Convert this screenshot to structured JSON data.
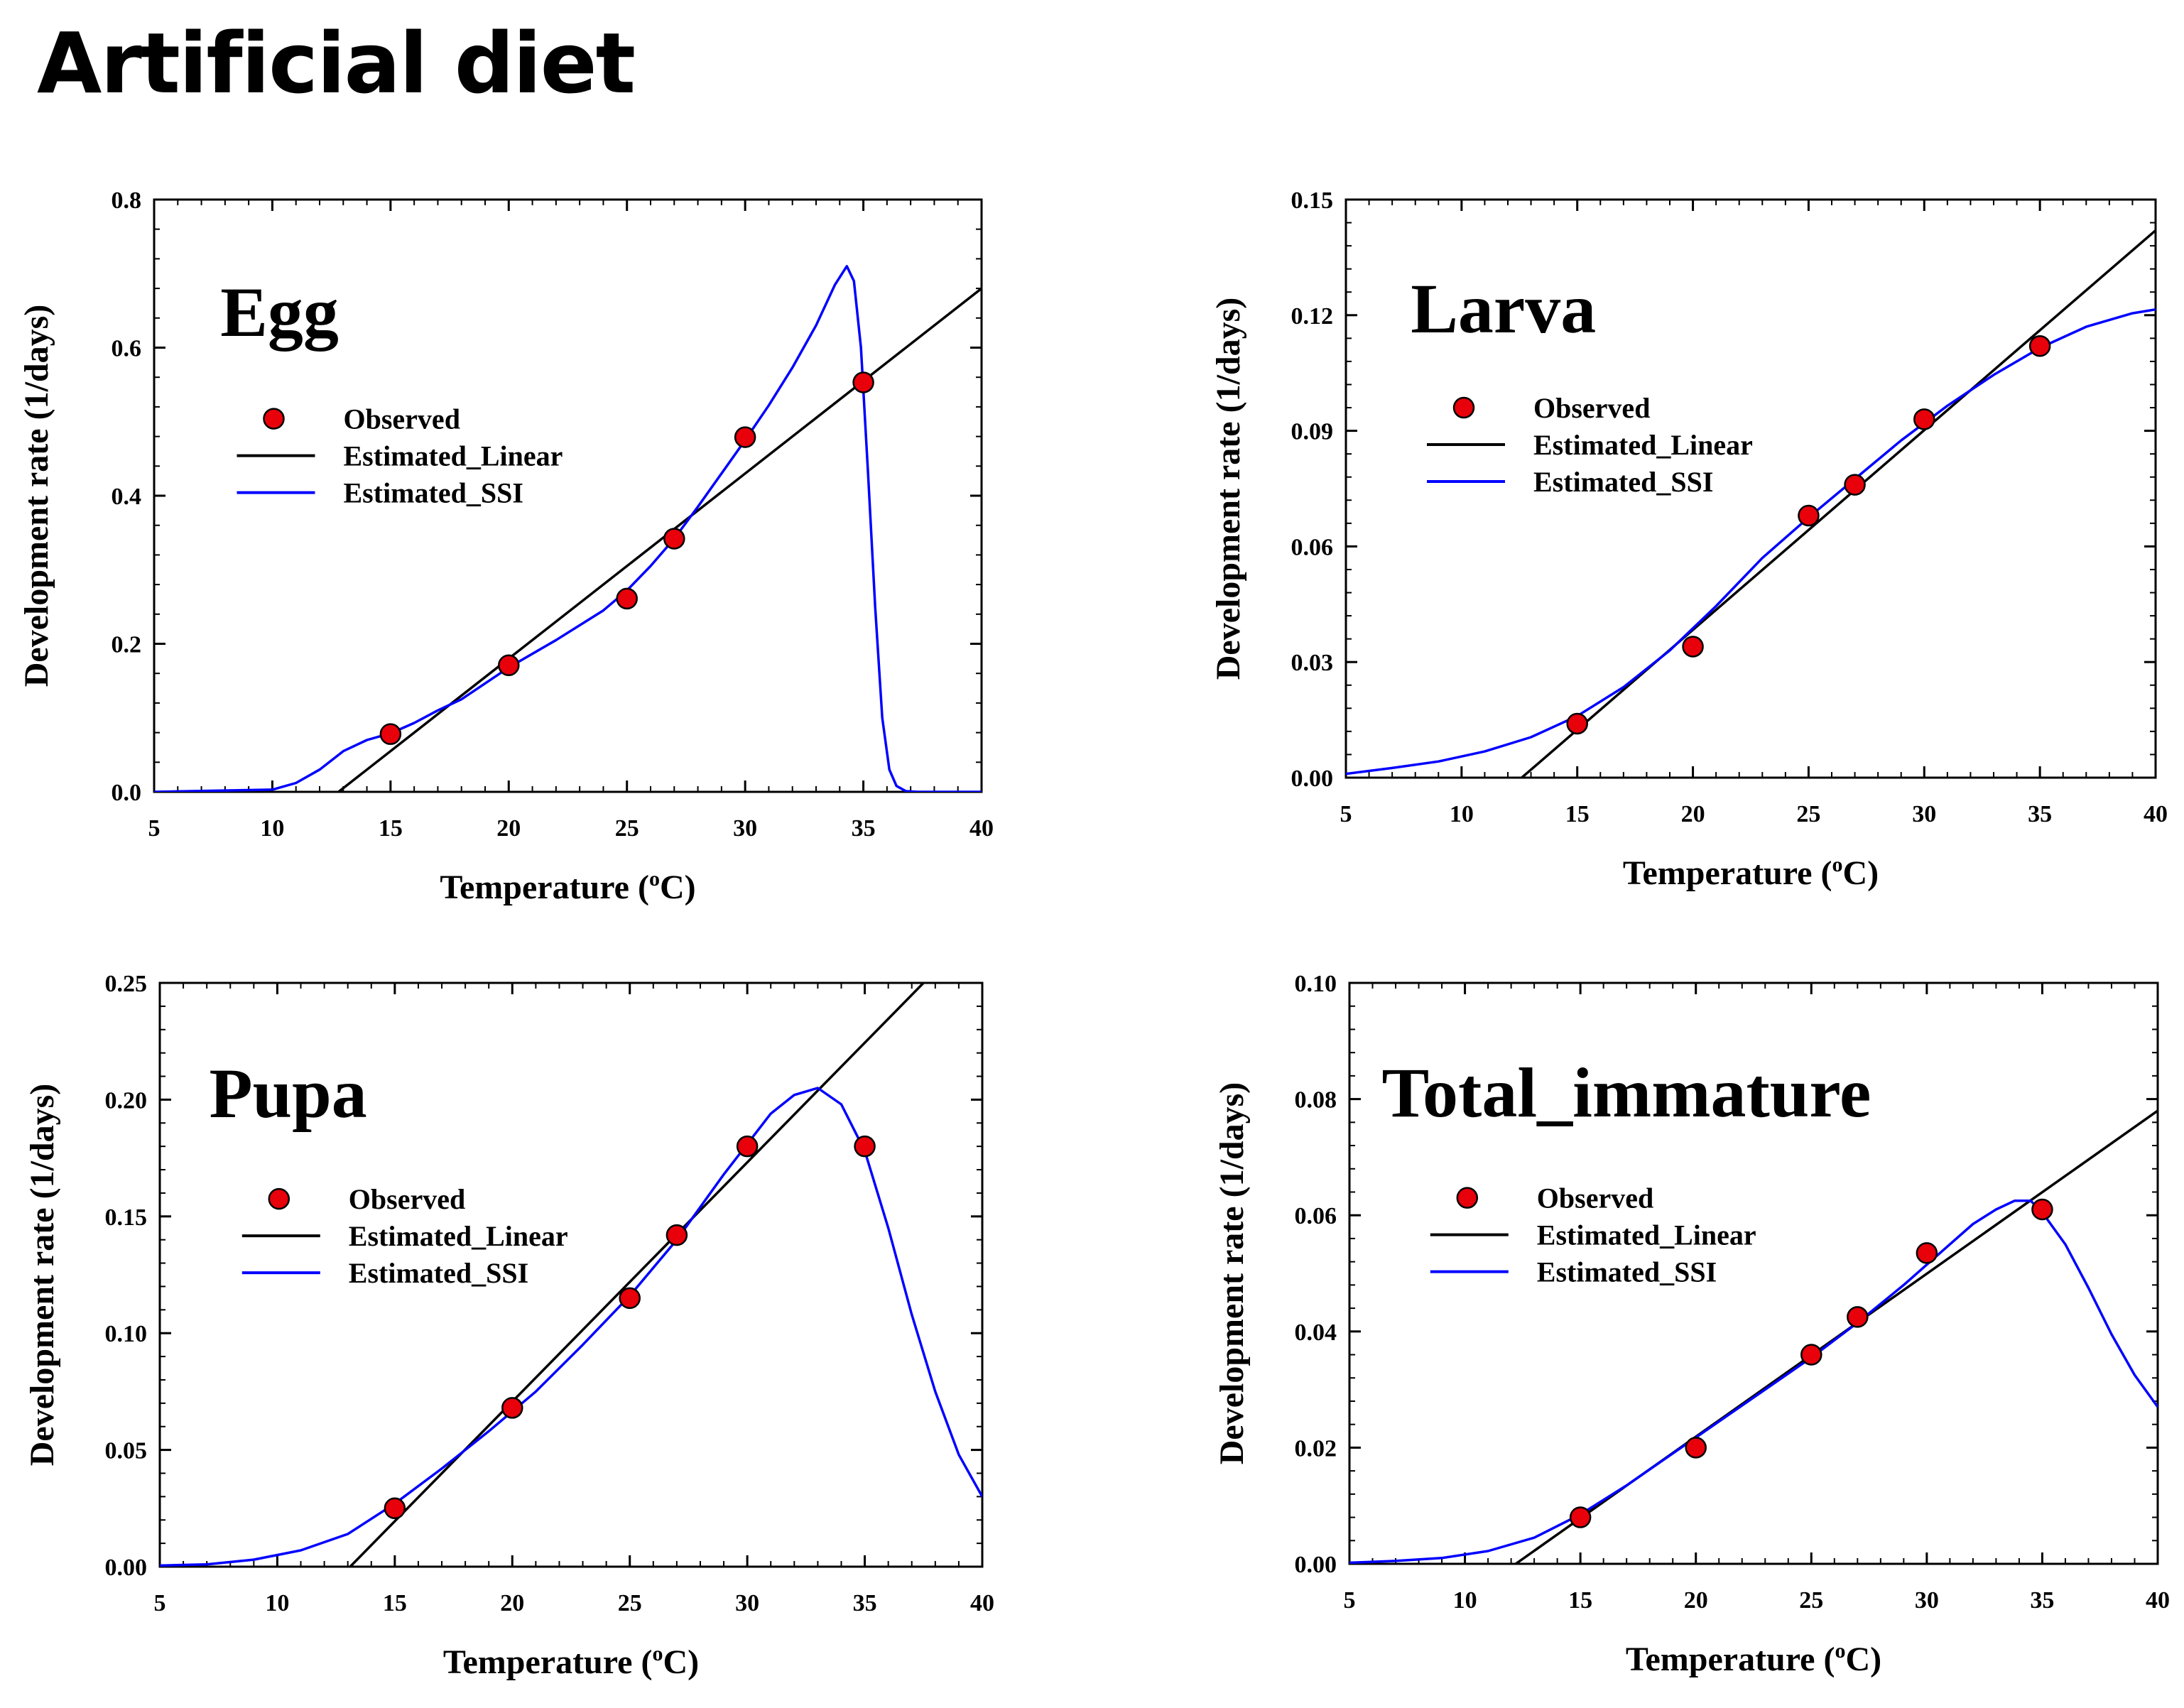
{
  "page": {
    "title": "Artificial diet"
  },
  "legend": {
    "observed": "Observed",
    "linear": "Estimated_Linear",
    "ssi": "Estimated_SSI"
  },
  "colors": {
    "observed_fill": "#e8000b",
    "linear": "#000000",
    "ssi": "#0000ff",
    "axis": "#000000"
  },
  "chart_data": [
    {
      "type": "scatter",
      "title": "Egg",
      "xlabel": "Temperature (oC)",
      "ylabel": "Development rate (1/days)",
      "xlim": [
        5,
        40
      ],
      "ylim": [
        0,
        0.8
      ],
      "xticks": [
        5,
        10,
        15,
        20,
        25,
        30,
        35,
        40
      ],
      "yticks": [
        0,
        0.2,
        0.4,
        0.6,
        0.8
      ],
      "ytick_labels": [
        "0.0",
        "0.2",
        "0.4",
        "0.6",
        "0.8"
      ],
      "observed": {
        "x": [
          15,
          20,
          25,
          27,
          30,
          35
        ],
        "y": [
          0.078,
          0.171,
          0.261,
          0.342,
          0.479,
          0.553
        ]
      },
      "linear": {
        "x": [
          12.8,
          40
        ],
        "y": [
          0,
          0.68
        ]
      },
      "ssi": {
        "x": [
          5,
          10,
          11,
          12,
          13,
          14,
          15,
          16,
          17,
          18,
          20,
          22,
          24,
          25,
          26,
          27,
          28,
          29,
          30,
          31,
          32,
          33,
          33.8,
          34.3,
          34.6,
          34.9,
          35.2,
          35.5,
          35.8,
          36.1,
          36.4,
          36.8,
          37.3,
          40
        ],
        "y": [
          0,
          0.003,
          0.012,
          0.03,
          0.055,
          0.07,
          0.079,
          0.093,
          0.11,
          0.125,
          0.168,
          0.205,
          0.245,
          0.272,
          0.305,
          0.342,
          0.385,
          0.43,
          0.475,
          0.522,
          0.573,
          0.63,
          0.685,
          0.71,
          0.69,
          0.6,
          0.43,
          0.25,
          0.1,
          0.03,
          0.008,
          0.001,
          0,
          0
        ]
      }
    },
    {
      "type": "scatter",
      "title": "Larva",
      "xlabel": "Temperature (oC)",
      "ylabel": "Development rate (1/days)",
      "xlim": [
        5,
        40
      ],
      "ylim": [
        0,
        0.15
      ],
      "xticks": [
        5,
        10,
        15,
        20,
        25,
        30,
        35,
        40
      ],
      "yticks": [
        0,
        0.03,
        0.06,
        0.09,
        0.12,
        0.15
      ],
      "ytick_labels": [
        "0.00",
        "0.03",
        "0.06",
        "0.09",
        "0.12",
        "0.15"
      ],
      "observed": {
        "x": [
          15,
          20,
          25,
          27,
          30,
          35
        ],
        "y": [
          0.014,
          0.034,
          0.068,
          0.076,
          0.093,
          0.112
        ]
      },
      "linear": {
        "x": [
          12.6,
          40
        ],
        "y": [
          0,
          0.142
        ]
      },
      "ssi": {
        "x": [
          5,
          7,
          9,
          11,
          13,
          15,
          17,
          19,
          21,
          23,
          25,
          27,
          29,
          31,
          33,
          35,
          37,
          39,
          40
        ],
        "y": [
          0.001,
          0.0025,
          0.0042,
          0.0068,
          0.0105,
          0.016,
          0.0235,
          0.033,
          0.0445,
          0.057,
          0.0675,
          0.0775,
          0.0875,
          0.0965,
          0.1045,
          0.1115,
          0.117,
          0.1205,
          0.1215
        ]
      }
    },
    {
      "type": "scatter",
      "title": "Pupa",
      "xlabel": "Temperature (oC)",
      "ylabel": "Development rate (1/days)",
      "xlim": [
        5,
        40
      ],
      "ylim": [
        0,
        0.25
      ],
      "xticks": [
        5,
        10,
        15,
        20,
        25,
        30,
        35,
        40
      ],
      "yticks": [
        0,
        0.05,
        0.1,
        0.15,
        0.2,
        0.25
      ],
      "ytick_labels": [
        "0.00",
        "0.05",
        "0.10",
        "0.15",
        "0.20",
        "0.25"
      ],
      "observed": {
        "x": [
          15,
          20,
          25,
          27,
          30,
          35
        ],
        "y": [
          0.025,
          0.068,
          0.115,
          0.142,
          0.18,
          0.18
        ]
      },
      "linear": {
        "x": [
          13.1,
          37.5
        ],
        "y": [
          0,
          0.25
        ]
      },
      "ssi": {
        "x": [
          5,
          7,
          9,
          11,
          13,
          15,
          17,
          19,
          21,
          23,
          25,
          27,
          29,
          30,
          31,
          32,
          33,
          34,
          35,
          36,
          37,
          38,
          39,
          40
        ],
        "y": [
          0.0005,
          0.001,
          0.003,
          0.007,
          0.014,
          0.027,
          0.042,
          0.058,
          0.075,
          0.095,
          0.116,
          0.14,
          0.168,
          0.181,
          0.194,
          0.202,
          0.205,
          0.198,
          0.178,
          0.145,
          0.108,
          0.075,
          0.048,
          0.03
        ]
      }
    },
    {
      "type": "scatter",
      "title": "Total_immature",
      "xlabel": "Temperature (oC)",
      "ylabel": "Development rate (1/days)",
      "xlim": [
        5,
        40
      ],
      "ylim": [
        0,
        0.1
      ],
      "xticks": [
        5,
        10,
        15,
        20,
        25,
        30,
        35,
        40
      ],
      "yticks": [
        0,
        0.02,
        0.04,
        0.06,
        0.08,
        0.1
      ],
      "ytick_labels": [
        "0.00",
        "0.02",
        "0.04",
        "0.06",
        "0.08",
        "0.10"
      ],
      "observed": {
        "x": [
          15,
          20,
          25,
          27,
          30,
          35
        ],
        "y": [
          0.008,
          0.02,
          0.036,
          0.0425,
          0.0535,
          0.061
        ]
      },
      "linear": {
        "x": [
          12.2,
          40
        ],
        "y": [
          0,
          0.078
        ]
      },
      "ssi": {
        "x": [
          5,
          7,
          9,
          11,
          13,
          15,
          17,
          19,
          21,
          23,
          25,
          27,
          29,
          30,
          31,
          32,
          33,
          33.8,
          34.5,
          35,
          36,
          37,
          38,
          39,
          40
        ],
        "y": [
          0.0002,
          0.0005,
          0.001,
          0.0022,
          0.0045,
          0.0085,
          0.0135,
          0.019,
          0.0245,
          0.03,
          0.0355,
          0.0415,
          0.048,
          0.0515,
          0.055,
          0.0585,
          0.061,
          0.0625,
          0.0625,
          0.0605,
          0.055,
          0.0475,
          0.0395,
          0.0325,
          0.027
        ]
      }
    }
  ]
}
